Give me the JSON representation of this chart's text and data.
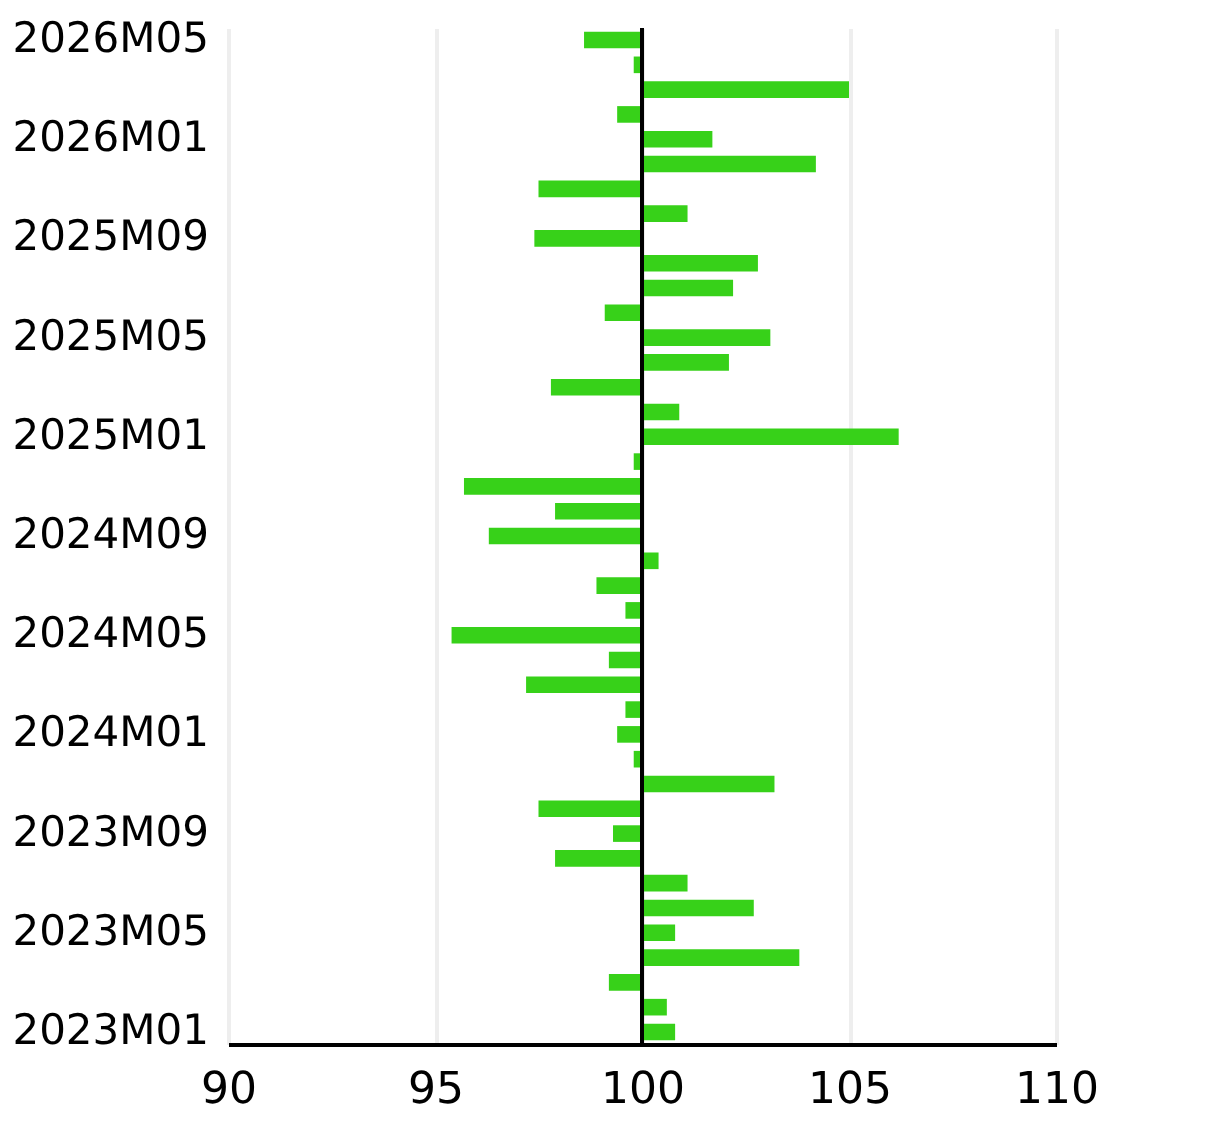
{
  "chart_data": {
    "type": "bar",
    "orientation": "horizontal",
    "categories": [
      "2026M05",
      null,
      null,
      null,
      "2026M01",
      null,
      null,
      null,
      "2025M09",
      null,
      null,
      null,
      "2025M05",
      null,
      null,
      null,
      "2025M01",
      null,
      null,
      null,
      "2024M09",
      null,
      null,
      null,
      "2024M05",
      null,
      null,
      null,
      "2024M01",
      null,
      null,
      null,
      "2023M09",
      null,
      null,
      null,
      "2023M05",
      null,
      null,
      null,
      "2023M01"
    ],
    "base": [
      100,
      100,
      100,
      100,
      100,
      100,
      100,
      100,
      100,
      100,
      100,
      100,
      100,
      100,
      100,
      100,
      100,
      100,
      100,
      100,
      100,
      100,
      100,
      100,
      100,
      100,
      100,
      100,
      100,
      100,
      100,
      100,
      100,
      100,
      100,
      100,
      100,
      100,
      100,
      100,
      100
    ],
    "values": [
      -1.4,
      -0.2,
      5.0,
      -0.6,
      1.7,
      4.2,
      -2.5,
      1.1,
      -2.6,
      2.8,
      2.2,
      -0.9,
      3.1,
      2.1,
      -2.2,
      0.9,
      6.2,
      -0.2,
      -4.3,
      -2.1,
      -3.7,
      0.4,
      -1.1,
      -0.4,
      -4.6,
      -0.8,
      -2.8,
      -0.4,
      -0.6,
      -0.2,
      3.2,
      -2.5,
      -0.7,
      -2.1,
      1.1,
      2.7,
      0.8,
      3.8,
      -0.8,
      0.6,
      0.8
    ],
    "color": "#37d119",
    "xlim": [
      90,
      110
    ],
    "xticks": [
      90,
      95,
      100,
      105,
      110
    ],
    "grid": "x",
    "ref_lines": [
      {
        "axis": "x",
        "value": 100,
        "color": "#000000"
      }
    ]
  }
}
